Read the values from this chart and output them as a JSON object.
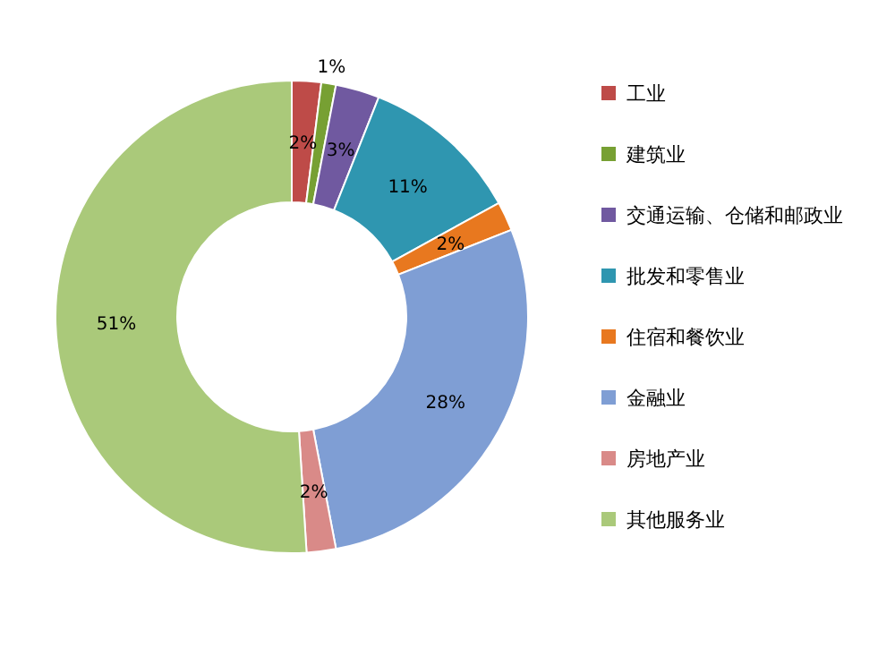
{
  "chart_data": {
    "type": "donut",
    "categories": [
      "工业",
      "建筑业",
      "交通运输、仓储和邮政业",
      "批发和零售业",
      "住宿和餐饮业",
      "金融业",
      "房地产业",
      "其他服务业"
    ],
    "values": [
      2,
      1,
      3,
      11,
      2,
      28,
      2,
      51
    ],
    "value_labels": [
      "2%",
      "1%",
      "3%",
      "11%",
      "2%",
      "28%",
      "2%",
      "51%"
    ],
    "colors": [
      "#be4b48",
      "#77a033",
      "#7059a0",
      "#2f96b0",
      "#e8781f",
      "#7f9ed4",
      "#d98a88",
      "#aac97a"
    ],
    "legend": "right"
  }
}
